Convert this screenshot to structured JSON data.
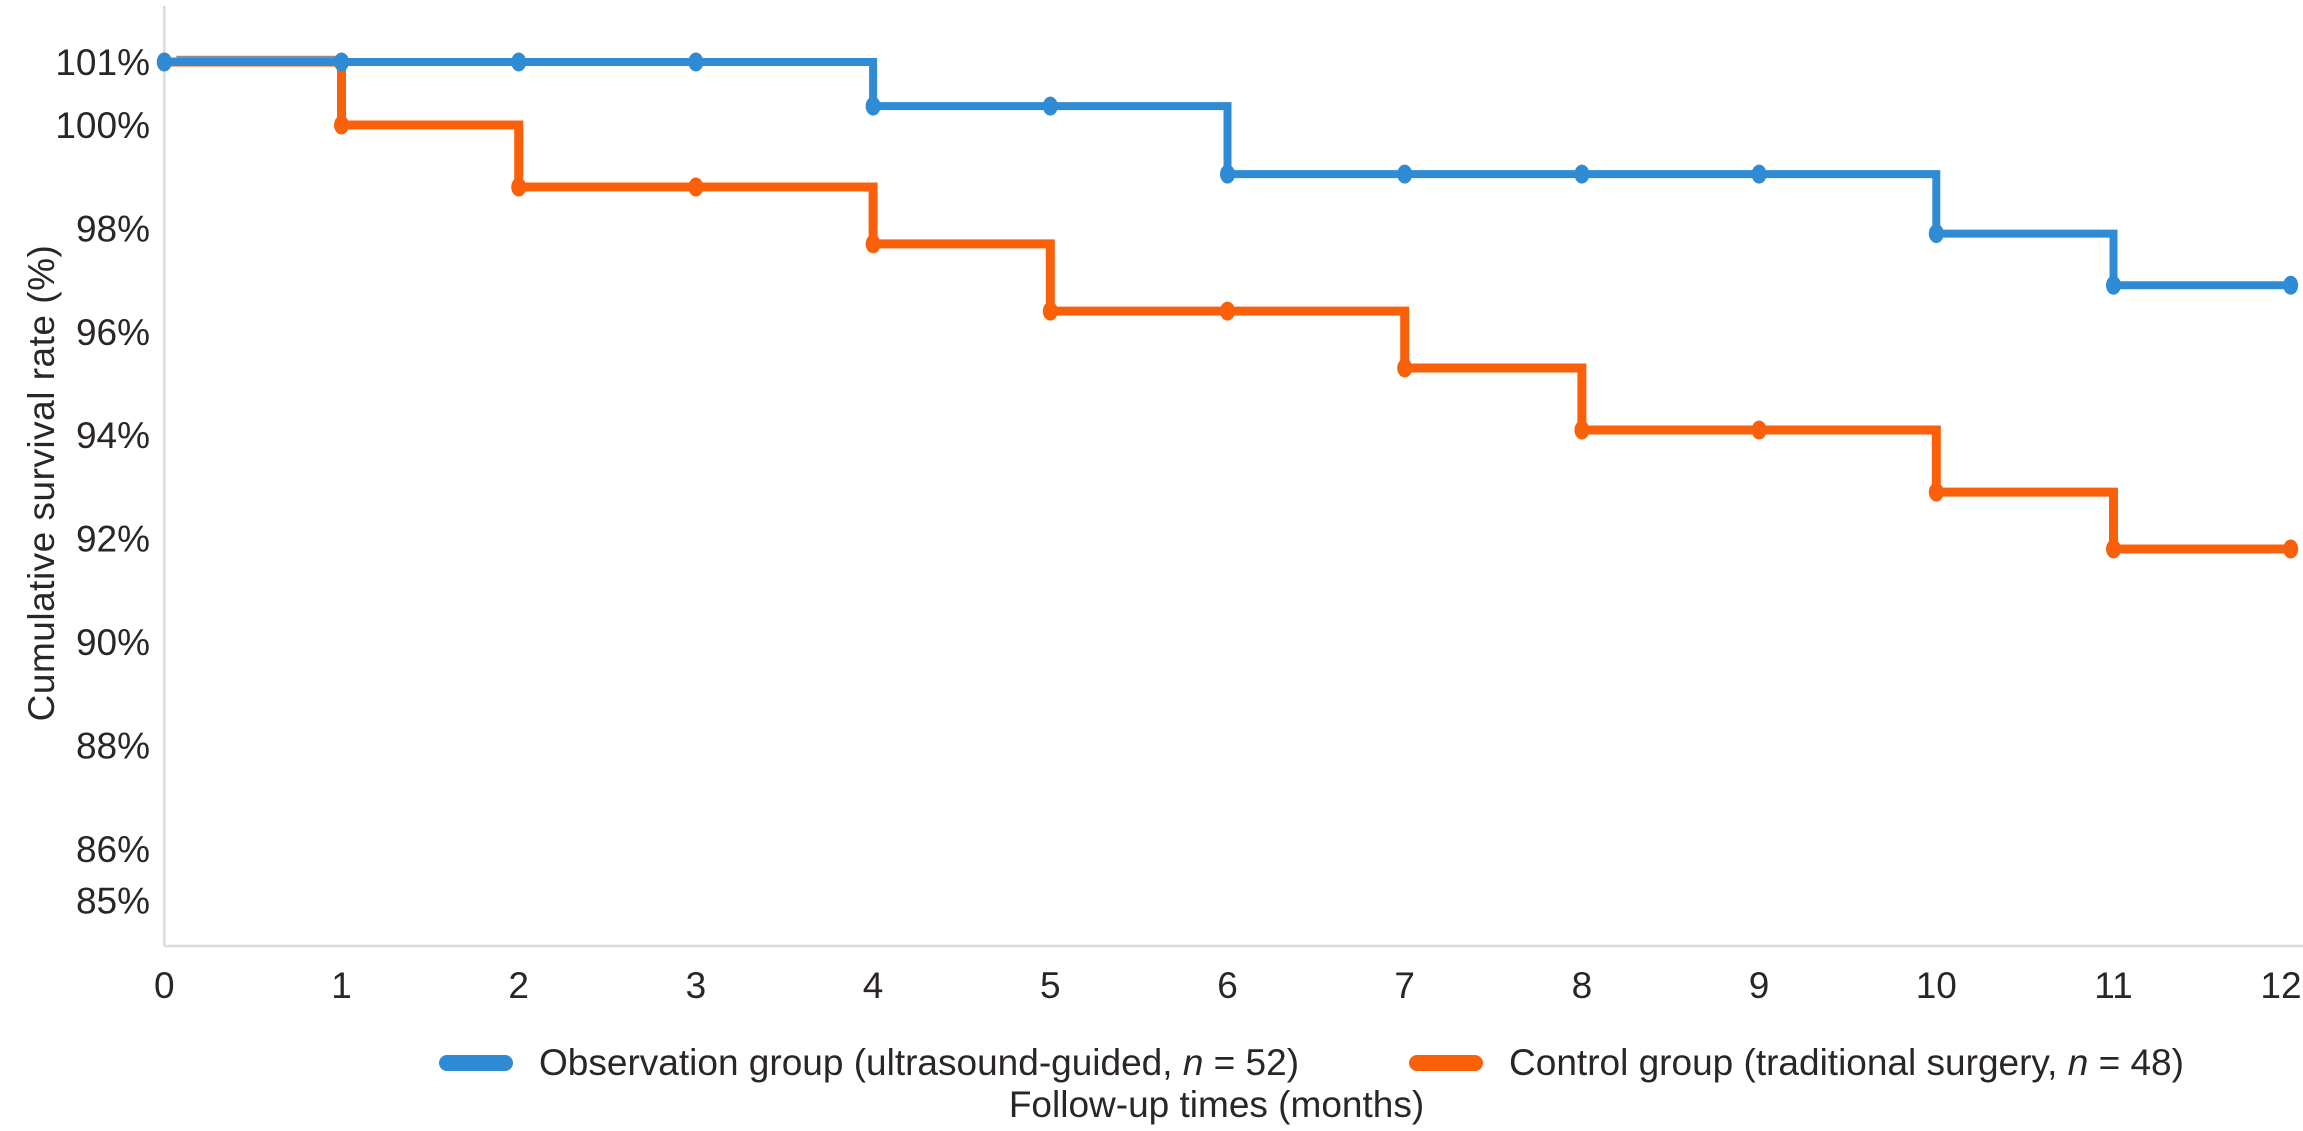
{
  "chart_data": {
    "type": "line",
    "subtype": "step-after-survival",
    "title": "",
    "xlabel": "Follow-up times (months)",
    "ylabel": "Cumulative survival rate (%)",
    "x": [
      0,
      1,
      2,
      3,
      4,
      5,
      6,
      7,
      8,
      9,
      10,
      11,
      12
    ],
    "x_ticks": [
      {
        "label": "0",
        "value": 0
      },
      {
        "label": "1",
        "value": 1
      },
      {
        "label": "2",
        "value": 2
      },
      {
        "label": "3",
        "value": 3
      },
      {
        "label": "4",
        "value": 4
      },
      {
        "label": "5",
        "value": 5
      },
      {
        "label": "6",
        "value": 6
      },
      {
        "label": "7",
        "value": 7
      },
      {
        "label": "8",
        "value": 8
      },
      {
        "label": "9",
        "value": 9
      },
      {
        "label": "10",
        "value": 10
      },
      {
        "label": "11",
        "value": 11
      },
      {
        "label": "12",
        "value": 12
      }
    ],
    "y_ticks": [
      {
        "label": "101%",
        "value": 101
      },
      {
        "label": "100%",
        "value": 100
      },
      {
        "label": "98%",
        "value": 98
      },
      {
        "label": "96%",
        "value": 96
      },
      {
        "label": "94%",
        "value": 94
      },
      {
        "label": "92%",
        "value": 92
      },
      {
        "label": "90%",
        "value": 90
      },
      {
        "label": "88%",
        "value": 88
      },
      {
        "label": "86%",
        "value": 86
      },
      {
        "label": "85%",
        "value": 85
      }
    ],
    "ylim": [
      84.2,
      102
    ],
    "grid": "off",
    "legend_position": "bottom",
    "axis_color": "#dcdcdc",
    "text_color": "#2a2526",
    "series": [
      {
        "name": "Observation group (ultrasound-guided, n = 52)",
        "color": "#2e8bd4",
        "values": [
          101,
          101,
          101,
          101,
          100.3,
          100.3,
          99.05,
          99.05,
          99.05,
          99.05,
          97.9,
          96.9,
          96.9
        ]
      },
      {
        "name": "Control group (traditional surgery, n = 48)",
        "color": "#fa600a",
        "values": [
          101,
          100,
          98.8,
          98.8,
          97.7,
          96.4,
          96.4,
          95.3,
          94.1,
          94.1,
          92.9,
          91.8,
          91.8
        ]
      }
    ],
    "legend_items": [
      {
        "pre": "Observation group (ultrasound-guided, ",
        "n": "n",
        "post": " = 52)",
        "color": "#2e8bd4"
      },
      {
        "pre": "Control group (traditional surgery, ",
        "n": "n",
        "post": " = 48)",
        "color": "#fa600a"
      }
    ],
    "overlap_edge_color": "#8f8b94"
  }
}
